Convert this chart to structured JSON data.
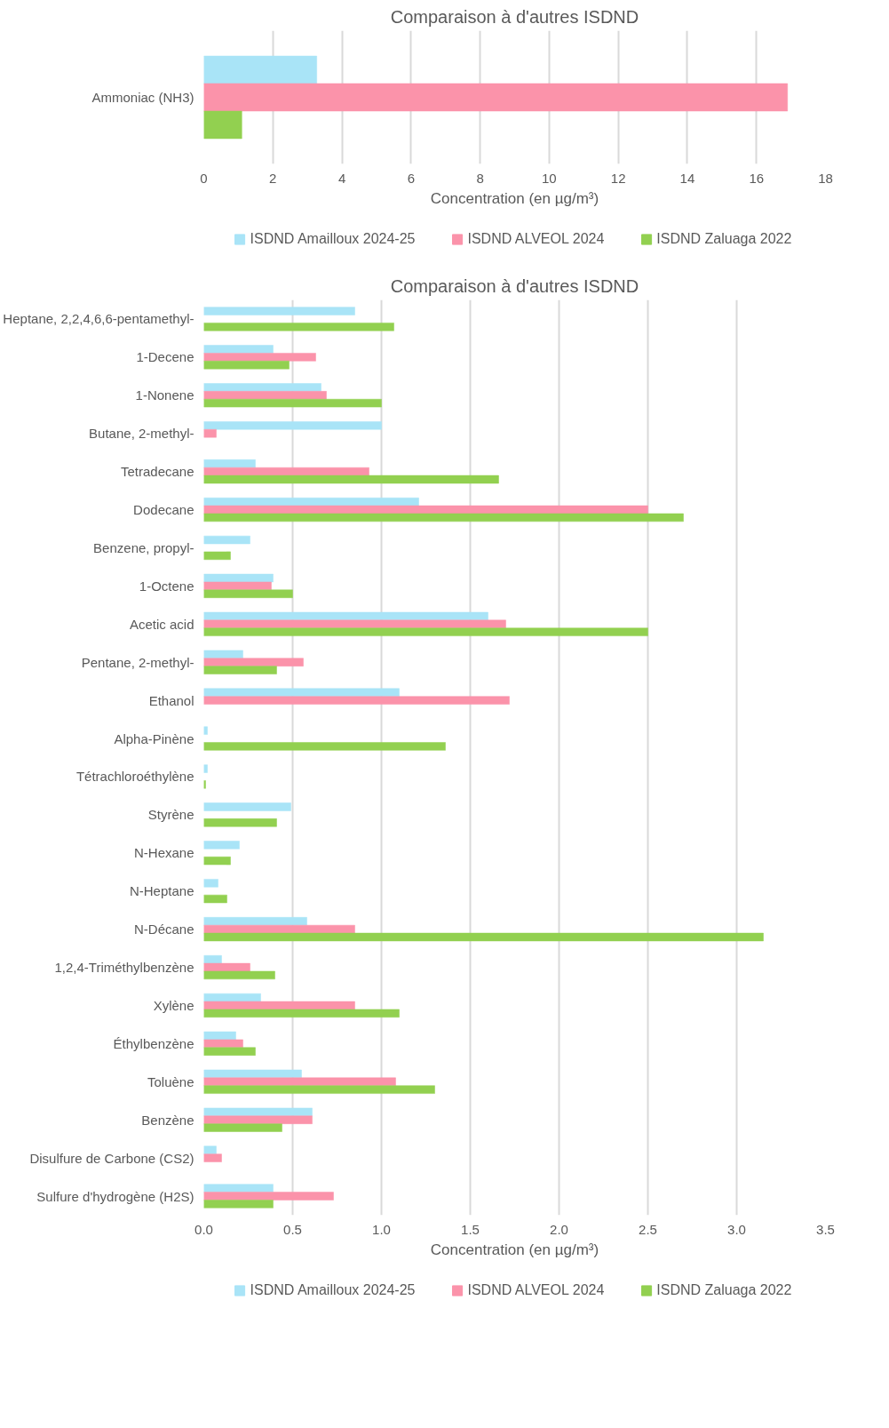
{
  "chart_data": [
    {
      "type": "bar",
      "orientation": "horizontal",
      "title": "Comparaison à d'autres ISDND",
      "xlabel": "Concentration (en µg/m³)",
      "categories": [
        "Ammoniac (NH3)"
      ],
      "series": [
        {
          "name": "ISDND Amailloux 2024-25",
          "color": "#a9e4f7",
          "values": [
            3.27
          ]
        },
        {
          "name": "ISDND ALVEOL 2024",
          "color": "#fb93aa",
          "values": [
            16.9
          ]
        },
        {
          "name": "ISDND Zaluaga 2022",
          "color": "#92d050",
          "values": [
            1.1
          ]
        }
      ],
      "xlim": [
        0,
        18
      ],
      "xticks": [
        0,
        2,
        4,
        6,
        8,
        10,
        12,
        14,
        16,
        18
      ],
      "grid": "x",
      "legend": "bottom"
    },
    {
      "type": "bar",
      "orientation": "horizontal",
      "title": "Comparaison à d'autres ISDND",
      "xlabel": "Concentration (en µg/m³)",
      "categories": [
        "Heptane, 2,2,4,6,6-pentamethyl-",
        "1-Decene",
        "1-Nonene",
        "Butane, 2-methyl-",
        "Tetradecane",
        "Dodecane",
        "Benzene, propyl-",
        "1-Octene",
        "Acetic acid",
        "Pentane, 2-methyl-",
        "Ethanol",
        "Alpha-Pinène",
        "Tétrachloroéthylène",
        "Styrène",
        "N-Hexane",
        "N-Heptane",
        "N-Décane",
        "1,2,4-Triméthylbenzène",
        "Xylène",
        "Éthylbenzène",
        "Toluène",
        "Benzène",
        "Disulfure de Carbone (CS2)",
        "Sulfure d'hydrogène (H2S)"
      ],
      "series": [
        {
          "name": "ISDND Amailloux 2024-25",
          "color": "#a9e4f7",
          "values": [
            0.85,
            0.39,
            0.66,
            1.0,
            0.29,
            1.21,
            0.26,
            0.39,
            1.6,
            0.22,
            1.1,
            0.02,
            0.02,
            0.49,
            0.2,
            0.08,
            0.58,
            0.1,
            0.32,
            0.18,
            0.55,
            0.61,
            0.07,
            0.39
          ]
        },
        {
          "name": "ISDND ALVEOL 2024",
          "color": "#fb93aa",
          "values": [
            null,
            0.63,
            0.69,
            0.07,
            0.93,
            2.5,
            null,
            0.38,
            1.7,
            0.56,
            1.72,
            null,
            null,
            null,
            null,
            null,
            0.85,
            0.26,
            0.85,
            0.22,
            1.08,
            0.61,
            0.1,
            0.73
          ]
        },
        {
          "name": "ISDND Zaluaga 2022",
          "color": "#92d050",
          "values": [
            1.07,
            0.48,
            1.0,
            null,
            1.66,
            2.7,
            0.15,
            0.5,
            2.5,
            0.41,
            null,
            1.36,
            0.01,
            0.41,
            0.15,
            0.13,
            3.15,
            0.4,
            1.1,
            0.29,
            1.3,
            0.44,
            null,
            0.39
          ]
        }
      ],
      "xlim": [
        0,
        3.5
      ],
      "xticks": [
        {
          "value": 0,
          "label": "0.0"
        },
        0.5,
        {
          "value": 1,
          "label": "1.0"
        },
        1.5,
        {
          "value": 2,
          "label": "2.0"
        },
        2.5,
        {
          "value": 3,
          "label": "3.0"
        },
        3.5
      ],
      "grid": "x",
      "legend": "bottom"
    }
  ]
}
